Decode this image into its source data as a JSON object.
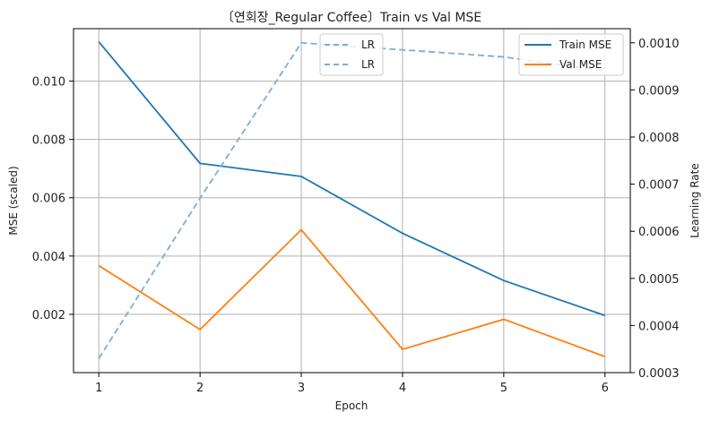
{
  "chart_data": {
    "type": "line",
    "title": "〔연회장_Regular Coffee〕Train vs Val MSE",
    "xlabel": "Epoch",
    "ylabel": "MSE (scaled)",
    "y2label": "Learning Rate",
    "x": [
      1,
      2,
      3,
      4,
      5,
      6
    ],
    "xticks": [
      "1",
      "2",
      "3",
      "4",
      "5",
      "6"
    ],
    "xlim": [
      0.75,
      6.25
    ],
    "ylim": [
      0.0,
      0.0118
    ],
    "yticks": [
      "0.002",
      "0.004",
      "0.006",
      "0.008",
      "0.010"
    ],
    "y2lim": [
      0.0003,
      0.00103
    ],
    "y2ticks": [
      "0.0003",
      "0.0004",
      "0.0005",
      "0.0006",
      "0.0007",
      "0.0008",
      "0.0009",
      "0.0010"
    ],
    "grid": true,
    "series": [
      {
        "name": "Train MSE",
        "axis": "left",
        "color": "#1f77b4",
        "style": "solid",
        "values": [
          0.01135,
          0.00718,
          0.00673,
          0.00478,
          0.00316,
          0.00196
        ]
      },
      {
        "name": "Val MSE",
        "axis": "left",
        "color": "#ff7f0e",
        "style": "solid",
        "values": [
          0.00367,
          0.00148,
          0.0049,
          0.0008,
          0.00183,
          0.00055
        ]
      },
      {
        "name": "LR",
        "axis": "right",
        "color": "#7aaed6",
        "style": "dashed",
        "values": [
          0.00033,
          0.00067,
          0.001,
          0.000985,
          0.00097,
          0.00094
        ]
      }
    ],
    "legend_left": {
      "placement": "upper-center",
      "entries": [
        "LR",
        "LR"
      ]
    },
    "legend_right": {
      "placement": "upper-right",
      "entries": [
        "Train MSE",
        "Val MSE"
      ]
    }
  }
}
